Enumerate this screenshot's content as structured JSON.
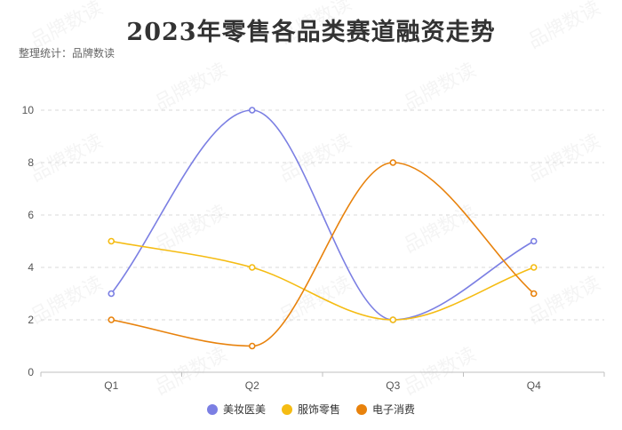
{
  "header": {
    "title": "2023年零售各品类赛道融资走势",
    "subtitle": "整理统计：品牌数读"
  },
  "watermark": "品牌数读",
  "chart_data": {
    "type": "line",
    "smooth": true,
    "categories": [
      "Q1",
      "Q2",
      "Q3",
      "Q4"
    ],
    "series": [
      {
        "name": "美妆医美",
        "color": "#7b7fe3",
        "values": [
          3,
          10,
          2,
          5
        ]
      },
      {
        "name": "服饰零售",
        "color": "#f5bc13",
        "values": [
          5,
          4,
          2,
          4
        ]
      },
      {
        "name": "电子消费",
        "color": "#e8820c",
        "values": [
          2,
          1,
          8,
          3
        ]
      }
    ],
    "ylim": [
      0,
      10
    ],
    "yticks": [
      0,
      2,
      4,
      6,
      8,
      10
    ],
    "grid": true,
    "legend_position": "bottom-center"
  }
}
